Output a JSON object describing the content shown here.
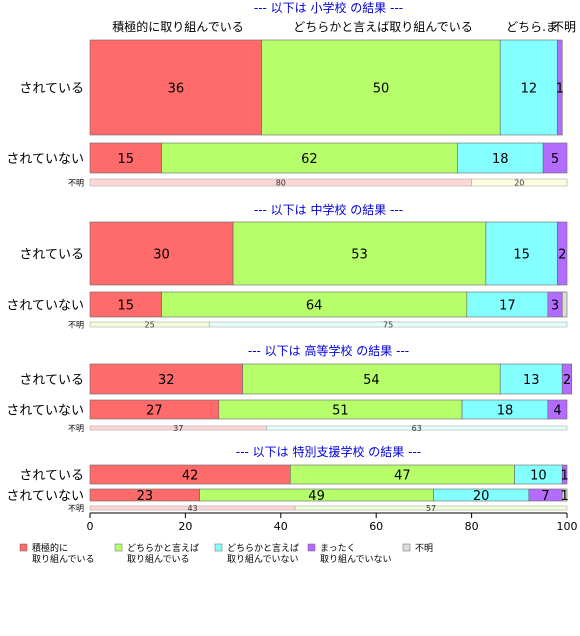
{
  "chart_data": {
    "type": "bar",
    "orientation": "horizontal",
    "stacked": true,
    "xlim": [
      0,
      100
    ],
    "xticks": [
      0,
      20,
      40,
      60,
      80,
      100
    ],
    "category_headers": [
      "積極的に取り組んでいる",
      "どちらかと言えば取り組んでいる",
      "どちら.ま",
      "不明"
    ],
    "legend": {
      "placement": "bottom",
      "items": [
        {
          "lines": [
            "積極的に",
            "取り組んでいる"
          ],
          "color": "#ff6b6b"
        },
        {
          "lines": [
            "どちらかと言えば",
            "取り組んでいる"
          ],
          "color": "#b6ff6b"
        },
        {
          "lines": [
            "どちらかと言えば",
            "取り組んでいない"
          ],
          "color": "#84ffff"
        },
        {
          "lines": [
            "まったく",
            "取り組んでいない"
          ],
          "color": "#b46bff"
        },
        {
          "lines": [
            "不明"
          ],
          "color": "#dcdcdc"
        }
      ]
    },
    "panels": [
      {
        "title": "--- 以下は 小学校 の結果 ---",
        "rows": [
          {
            "label": "されている",
            "values": [
              36,
              50,
              12,
              1,
              0
            ],
            "labels": [
              "36",
              "50",
              "12",
              "1",
              ""
            ]
          },
          {
            "label": "されていない",
            "values": [
              15,
              62,
              18,
              5,
              0
            ],
            "labels": [
              "15",
              "62",
              "18",
              "5",
              ""
            ]
          },
          {
            "label": "不明",
            "small": true,
            "values": [
              80,
              0,
              0,
              0,
              20
            ],
            "labels": [
              "80",
              "",
              "",
              "",
              "20"
            ]
          }
        ]
      },
      {
        "title": "--- 以下は 中学校 の結果 ---",
        "rows": [
          {
            "label": "されている",
            "values": [
              30,
              53,
              15,
              2,
              0
            ],
            "labels": [
              "30",
              "53",
              "15",
              "2",
              ""
            ]
          },
          {
            "label": "されていない",
            "values": [
              15,
              64,
              17,
              3,
              1
            ],
            "labels": [
              "15",
              "64",
              "17",
              "3",
              ""
            ]
          },
          {
            "label": "不明",
            "small": true,
            "values": [
              0,
              25,
              75,
              0,
              0
            ],
            "labels": [
              "",
              "25",
              "75",
              "",
              ""
            ]
          }
        ]
      },
      {
        "title": "--- 以下は 高等学校 の結果 ---",
        "rows": [
          {
            "label": "されている",
            "values": [
              32,
              54,
              13,
              2,
              0
            ],
            "labels": [
              "32",
              "54",
              "13",
              "2",
              ""
            ]
          },
          {
            "label": "されていない",
            "values": [
              27,
              51,
              18,
              4,
              0
            ],
            "labels": [
              "27",
              "51",
              "18",
              "4",
              ""
            ]
          },
          {
            "label": "不明",
            "small": true,
            "values": [
              37,
              0,
              63,
              0,
              0
            ],
            "labels": [
              "37",
              "",
              "63",
              "",
              ""
            ]
          }
        ]
      },
      {
        "title": "--- 以下は 特別支援学校 の結果 ---",
        "rows": [
          {
            "label": "されている",
            "values": [
              42,
              47,
              10,
              1,
              0
            ],
            "labels": [
              "42",
              "47",
              "10",
              "1",
              ""
            ]
          },
          {
            "label": "されていない",
            "values": [
              23,
              49,
              20,
              7,
              1
            ],
            "labels": [
              "23",
              "49",
              "20",
              "7",
              "1"
            ]
          },
          {
            "label": "不明",
            "small": true,
            "values": [
              43,
              57,
              0,
              0,
              0
            ],
            "labels": [
              "43",
              "57",
              "",
              "",
              ""
            ]
          }
        ]
      }
    ]
  }
}
